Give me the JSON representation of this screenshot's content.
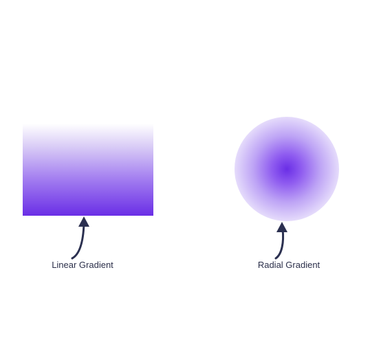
{
  "labels": {
    "linear": "Linear Gradient",
    "radial": "Radial Gradient"
  },
  "colors": {
    "gradient_end": "#6a2ee6",
    "arrow": "#2b3050",
    "label": "#2b2f4a"
  }
}
